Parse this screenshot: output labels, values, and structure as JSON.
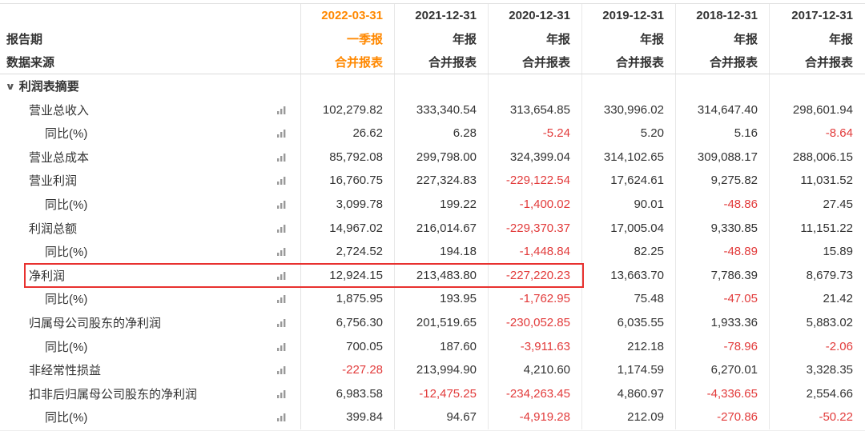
{
  "colors": {
    "accent_orange": "#ff8800",
    "negative_red": "#e23b3b",
    "highlight_border": "#e8312f",
    "text": "#333333",
    "grid_line": "#e8e8e8"
  },
  "header": {
    "report_period_label": "报告期",
    "data_source_label": "数据来源",
    "columns": [
      {
        "date": "2022-03-31",
        "period": "一季报",
        "source": "合并报表",
        "highlight": true
      },
      {
        "date": "2021-12-31",
        "period": "年报",
        "source": "合并报表",
        "highlight": false
      },
      {
        "date": "2020-12-31",
        "period": "年报",
        "source": "合并报表",
        "highlight": false
      },
      {
        "date": "2019-12-31",
        "period": "年报",
        "source": "合并报表",
        "highlight": false
      },
      {
        "date": "2018-12-31",
        "period": "年报",
        "source": "合并报表",
        "highlight": false
      },
      {
        "date": "2017-12-31",
        "period": "年报",
        "source": "合并报表",
        "highlight": false
      }
    ]
  },
  "section": {
    "caret": "∨",
    "label": "利润表摘要"
  },
  "table": {
    "rows": [
      {
        "label": "营业总收入",
        "indent": 1,
        "highlighted": false,
        "values": [
          "102,279.82",
          "333,340.54",
          "313,654.85",
          "330,996.02",
          "314,647.40",
          "298,601.94"
        ]
      },
      {
        "label": "同比(%)",
        "indent": 2,
        "highlighted": false,
        "values": [
          "26.62",
          "6.28",
          "-5.24",
          "5.20",
          "5.16",
          "-8.64"
        ]
      },
      {
        "label": "营业总成本",
        "indent": 1,
        "highlighted": false,
        "values": [
          "85,792.08",
          "299,798.00",
          "324,399.04",
          "314,102.65",
          "309,088.17",
          "288,006.15"
        ]
      },
      {
        "label": "营业利润",
        "indent": 1,
        "highlighted": false,
        "values": [
          "16,760.75",
          "227,324.83",
          "-229,122.54",
          "17,624.61",
          "9,275.82",
          "11,031.52"
        ]
      },
      {
        "label": "同比(%)",
        "indent": 2,
        "highlighted": false,
        "values": [
          "3,099.78",
          "199.22",
          "-1,400.02",
          "90.01",
          "-48.86",
          "27.45"
        ]
      },
      {
        "label": "利润总额",
        "indent": 1,
        "highlighted": false,
        "values": [
          "14,967.02",
          "216,014.67",
          "-229,370.37",
          "17,005.04",
          "9,330.85",
          "11,151.22"
        ]
      },
      {
        "label": "同比(%)",
        "indent": 2,
        "highlighted": false,
        "values": [
          "2,724.52",
          "194.18",
          "-1,448.84",
          "82.25",
          "-48.89",
          "15.89"
        ]
      },
      {
        "label": "净利润",
        "indent": 1,
        "highlighted": true,
        "values": [
          "12,924.15",
          "213,483.80",
          "-227,220.23",
          "13,663.70",
          "7,786.39",
          "8,679.73"
        ]
      },
      {
        "label": "同比(%)",
        "indent": 2,
        "highlighted": false,
        "values": [
          "1,875.95",
          "193.95",
          "-1,762.95",
          "75.48",
          "-47.05",
          "21.42"
        ]
      },
      {
        "label": "归属母公司股东的净利润",
        "indent": 1,
        "highlighted": false,
        "values": [
          "6,756.30",
          "201,519.65",
          "-230,052.85",
          "6,035.55",
          "1,933.36",
          "5,883.02"
        ]
      },
      {
        "label": "同比(%)",
        "indent": 2,
        "highlighted": false,
        "values": [
          "700.05",
          "187.60",
          "-3,911.63",
          "212.18",
          "-78.96",
          "-2.06"
        ]
      },
      {
        "label": "非经常性损益",
        "indent": 1,
        "highlighted": false,
        "values": [
          "-227.28",
          "213,994.90",
          "4,210.60",
          "1,174.59",
          "6,270.01",
          "3,328.35"
        ]
      },
      {
        "label": "扣非后归属母公司股东的净利润",
        "indent": 1,
        "highlighted": false,
        "values": [
          "6,983.58",
          "-12,475.25",
          "-234,263.45",
          "4,860.97",
          "-4,336.65",
          "2,554.66"
        ]
      },
      {
        "label": "同比(%)",
        "indent": 2,
        "highlighted": false,
        "values": [
          "399.84",
          "94.67",
          "-4,919.28",
          "212.09",
          "-270.86",
          "-50.22"
        ]
      }
    ]
  }
}
